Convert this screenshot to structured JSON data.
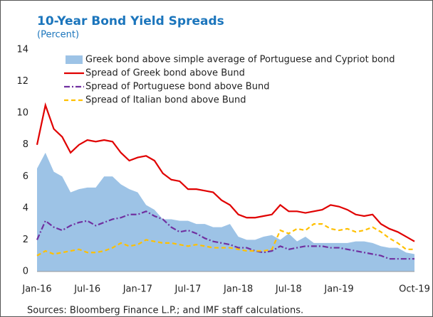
{
  "chart_data": {
    "type": "line",
    "title": "10-Year Bond Yield Spreads",
    "subtitle": "(Percent)",
    "source": "Sources: Bloomberg Finance L.P.; and IMF staff calculations.",
    "x": [
      "Jan-16",
      "Feb-16",
      "Mar-16",
      "Apr-16",
      "May-16",
      "Jun-16",
      "Jul-16",
      "Aug-16",
      "Sep-16",
      "Oct-16",
      "Nov-16",
      "Dec-16",
      "Jan-17",
      "Feb-17",
      "Mar-17",
      "Apr-17",
      "May-17",
      "Jun-17",
      "Jul-17",
      "Aug-17",
      "Sep-17",
      "Oct-17",
      "Nov-17",
      "Dec-17",
      "Jan-18",
      "Feb-18",
      "Mar-18",
      "Apr-18",
      "May-18",
      "Jun-18",
      "Jul-18",
      "Aug-18",
      "Sep-18",
      "Oct-18",
      "Nov-18",
      "Dec-18",
      "Jan-19",
      "Feb-19",
      "Mar-19",
      "Apr-19",
      "May-19",
      "Jun-19",
      "Jul-19",
      "Aug-19",
      "Sep-19",
      "Oct-19"
    ],
    "xticks": [
      "Jan-16",
      "Jul-16",
      "Jan-17",
      "Jul-17",
      "Jan-18",
      "Jul-18",
      "Jan-19",
      "Oct-19"
    ],
    "ylim": [
      0,
      14
    ],
    "yticks": [
      0,
      2,
      4,
      6,
      8,
      10,
      12,
      14
    ],
    "series": [
      {
        "name": "Greek bond above simple average of Portuguese and Cypriot bond",
        "kind": "area",
        "color": "#9dc3e6",
        "values": [
          6.5,
          7.5,
          6.3,
          6.0,
          5.0,
          5.2,
          5.3,
          5.3,
          6.0,
          6.0,
          5.5,
          5.2,
          5.0,
          4.2,
          3.9,
          3.3,
          3.3,
          3.2,
          3.2,
          3.0,
          3.0,
          2.8,
          2.8,
          3.0,
          2.2,
          2.0,
          2.0,
          2.2,
          2.3,
          2.0,
          2.4,
          1.9,
          2.2,
          1.8,
          1.8,
          1.8,
          1.8,
          1.8,
          1.9,
          1.9,
          1.8,
          1.6,
          1.5,
          1.5,
          1.2,
          1.1
        ]
      },
      {
        "name": "Spread of Greek bond above Bund",
        "kind": "solid",
        "color": "#e00000",
        "values": [
          8.0,
          10.5,
          9.0,
          8.5,
          7.5,
          8.0,
          8.3,
          8.2,
          8.3,
          8.2,
          7.5,
          7.0,
          7.2,
          7.3,
          7.0,
          6.2,
          5.8,
          5.7,
          5.2,
          5.2,
          5.1,
          5.0,
          4.5,
          4.2,
          3.6,
          3.4,
          3.4,
          3.5,
          3.6,
          4.2,
          3.8,
          3.8,
          3.7,
          3.8,
          3.9,
          4.2,
          4.1,
          3.9,
          3.6,
          3.5,
          3.6,
          3.0,
          2.7,
          2.5,
          2.2,
          1.9
        ]
      },
      {
        "name": "Spread of Portuguese bond above Bund",
        "kind": "dashdot",
        "color": "#7030a0",
        "values": [
          2.0,
          3.2,
          2.8,
          2.6,
          2.9,
          3.1,
          3.2,
          2.9,
          3.1,
          3.3,
          3.4,
          3.6,
          3.6,
          3.8,
          3.5,
          3.3,
          2.8,
          2.5,
          2.6,
          2.4,
          2.1,
          1.9,
          1.8,
          1.7,
          1.5,
          1.5,
          1.3,
          1.2,
          1.3,
          1.6,
          1.4,
          1.5,
          1.6,
          1.6,
          1.6,
          1.5,
          1.5,
          1.4,
          1.3,
          1.2,
          1.1,
          1.0,
          0.8,
          0.8,
          0.8,
          0.8
        ]
      },
      {
        "name": "Spread of Italian bond above Bund",
        "kind": "dash",
        "color": "#ffc000",
        "values": [
          1.0,
          1.3,
          1.1,
          1.2,
          1.3,
          1.4,
          1.2,
          1.2,
          1.3,
          1.5,
          1.8,
          1.6,
          1.7,
          2.0,
          1.9,
          1.8,
          1.8,
          1.7,
          1.6,
          1.7,
          1.6,
          1.5,
          1.5,
          1.5,
          1.4,
          1.3,
          1.3,
          1.3,
          1.4,
          2.6,
          2.4,
          2.7,
          2.6,
          3.0,
          3.0,
          2.7,
          2.6,
          2.7,
          2.5,
          2.6,
          2.8,
          2.5,
          2.1,
          1.8,
          1.4,
          1.4
        ]
      }
    ]
  }
}
